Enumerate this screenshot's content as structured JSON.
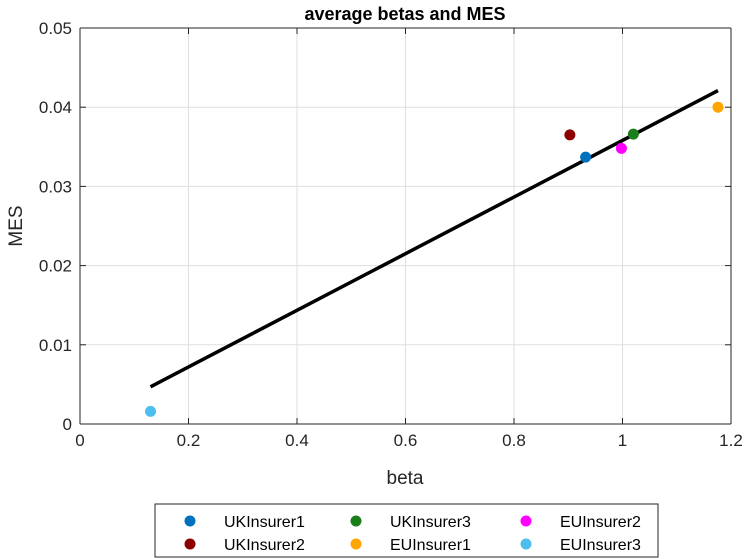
{
  "chart_data": {
    "type": "scatter",
    "title": "average betas and  MES",
    "xlabel": "beta",
    "ylabel": "MES",
    "xlim": [
      0,
      1.2
    ],
    "ylim": [
      0,
      0.05
    ],
    "xticks": [
      0,
      0.2,
      0.4,
      0.6,
      0.8,
      1,
      1.2
    ],
    "xtick_labels": [
      "0",
      "0.2",
      "0.4",
      "0.6",
      "0.8",
      "1",
      "1.2"
    ],
    "yticks": [
      0,
      0.01,
      0.02,
      0.03,
      0.04,
      0.05
    ],
    "ytick_labels": [
      "0",
      "0.01",
      "0.02",
      "0.03",
      "0.04",
      "0.05"
    ],
    "grid": true,
    "legend_placement": "bottom-outside",
    "series": [
      {
        "name": "UKInsurer1",
        "color": "#0072BD",
        "x": [
          0.932
        ],
        "y": [
          0.0337
        ]
      },
      {
        "name": "UKInsurer2",
        "color": "#8B0000",
        "x": [
          0.903
        ],
        "y": [
          0.0365
        ]
      },
      {
        "name": "UKInsurer3",
        "color": "#1A7F1A",
        "x": [
          1.02
        ],
        "y": [
          0.0366
        ]
      },
      {
        "name": "EUInsurer1",
        "color": "#FFA500",
        "x": [
          1.176
        ],
        "y": [
          0.04
        ]
      },
      {
        "name": "EUInsurer2",
        "color": "#FF00FF",
        "x": [
          0.998
        ],
        "y": [
          0.0348
        ]
      },
      {
        "name": "EUInsurer3",
        "color": "#4DBEEE",
        "x": [
          0.13
        ],
        "y": [
          0.0016
        ]
      }
    ],
    "fit_line": {
      "color": "#000000",
      "x": [
        0.13,
        1.176
      ],
      "y": [
        0.0047,
        0.0421
      ]
    }
  }
}
